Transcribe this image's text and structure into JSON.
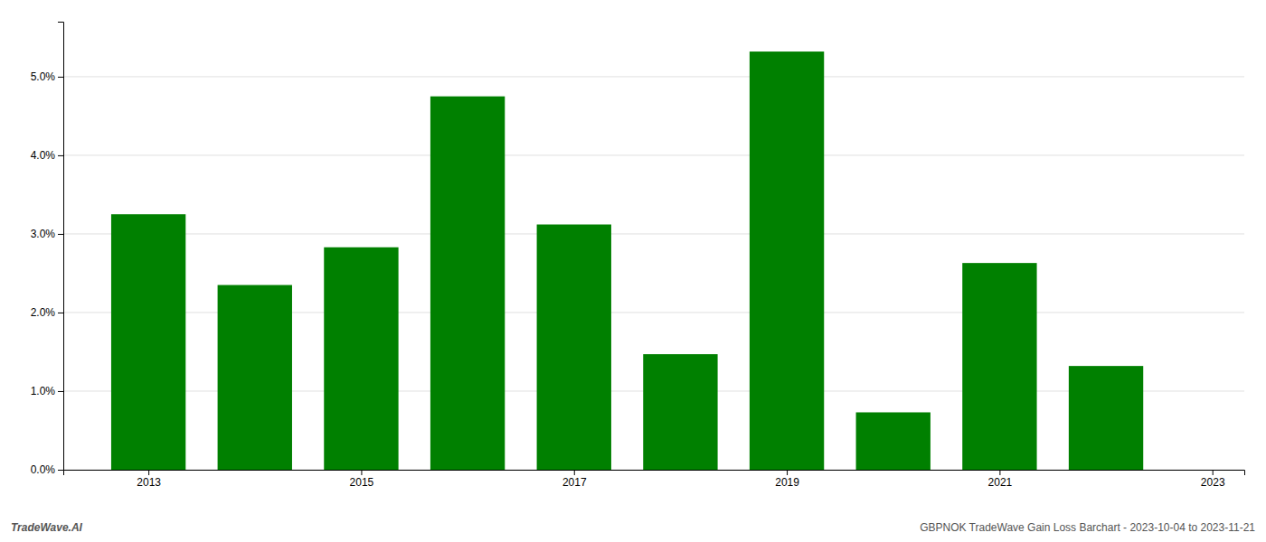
{
  "chart_data": {
    "type": "bar",
    "x": [
      2013,
      2014,
      2015,
      2016,
      2017,
      2018,
      2019,
      2020,
      2021,
      2022
    ],
    "values": [
      0.0325,
      0.0235,
      0.0283,
      0.0475,
      0.0312,
      0.0147,
      0.0532,
      0.0073,
      0.0263,
      0.0132
    ],
    "color": "#008000",
    "xlim": [
      2012.2,
      2023.3
    ],
    "xticks": [
      2013,
      2015,
      2017,
      2019,
      2021,
      2023
    ],
    "ylim": [
      0,
      0.057
    ],
    "yticks": [
      {
        "value": 0.0,
        "label": "0.0%"
      },
      {
        "value": 0.01,
        "label": "1.0%"
      },
      {
        "value": 0.02,
        "label": "2.0%"
      },
      {
        "value": 0.03,
        "label": "3.0%"
      },
      {
        "value": 0.04,
        "label": "4.0%"
      },
      {
        "value": 0.05,
        "label": "5.0%"
      }
    ],
    "grid": true,
    "annotations": [
      "TradeWave.AI",
      "GBPNOK TradeWave Gain Loss Barchart - 2023-10-04 to 2023-11-21"
    ]
  }
}
